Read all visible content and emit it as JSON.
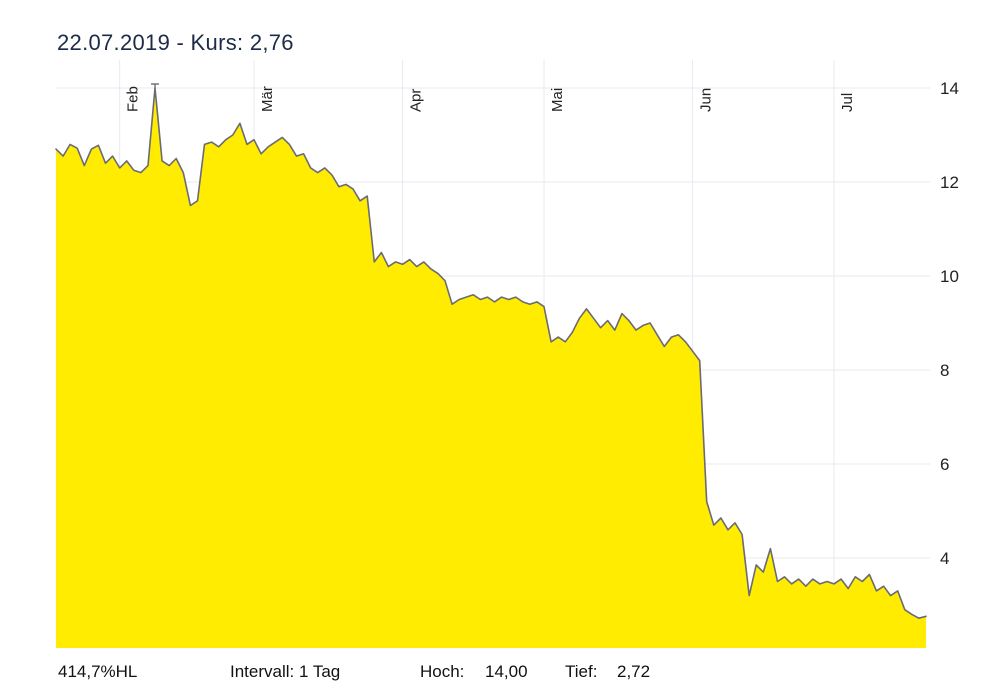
{
  "title": {
    "text": "22.07.2019  - Kurs: 2,76"
  },
  "footer": {
    "change": "414,7%HL",
    "interval": "Intervall: 1 Tag",
    "high_label": "Hoch:",
    "high_value": "14,00",
    "low_label": "Tief:",
    "low_value": "2,72"
  },
  "chart_data": {
    "type": "area",
    "title": "22.07.2019 - Kurs: 2,76",
    "xlabel": "",
    "ylabel": "",
    "grid": true,
    "legend_position": "none",
    "ylim": [
      2.0,
      14.3
    ],
    "y_ticks": [
      4,
      6,
      8,
      10,
      12,
      14
    ],
    "x_ticks": [
      {
        "label": "Feb",
        "index": 9
      },
      {
        "label": "Mär",
        "index": 28
      },
      {
        "label": "Apr",
        "index": 49
      },
      {
        "label": "Mai",
        "index": 69
      },
      {
        "label": "Jun",
        "index": 90
      },
      {
        "label": "Jul",
        "index": 110
      }
    ],
    "high": 14.0,
    "low": 2.72,
    "last": 2.76,
    "last_date": "22.07.2019",
    "interval": "1 Tag",
    "values": [
      12.7,
      12.55,
      12.8,
      12.72,
      12.35,
      12.7,
      12.78,
      12.4,
      12.55,
      12.3,
      12.45,
      12.25,
      12.2,
      12.35,
      14.0,
      12.45,
      12.35,
      12.5,
      12.2,
      11.5,
      11.6,
      12.8,
      12.85,
      12.75,
      12.9,
      13.0,
      13.25,
      12.8,
      12.9,
      12.6,
      12.75,
      12.85,
      12.95,
      12.8,
      12.55,
      12.6,
      12.3,
      12.2,
      12.3,
      12.15,
      11.9,
      11.95,
      11.85,
      11.6,
      11.7,
      10.3,
      10.5,
      10.2,
      10.3,
      10.25,
      10.35,
      10.2,
      10.3,
      10.15,
      10.05,
      9.9,
      9.4,
      9.5,
      9.55,
      9.6,
      9.5,
      9.55,
      9.45,
      9.55,
      9.5,
      9.55,
      9.45,
      9.4,
      9.45,
      9.35,
      8.6,
      8.7,
      8.6,
      8.8,
      9.1,
      9.3,
      9.1,
      8.9,
      9.05,
      8.85,
      9.2,
      9.05,
      8.85,
      8.95,
      9.0,
      8.75,
      8.5,
      8.7,
      8.75,
      8.6,
      8.4,
      8.2,
      5.2,
      4.7,
      4.85,
      4.6,
      4.75,
      4.5,
      3.2,
      3.85,
      3.7,
      4.2,
      3.5,
      3.6,
      3.45,
      3.55,
      3.4,
      3.55,
      3.45,
      3.5,
      3.45,
      3.55,
      3.35,
      3.6,
      3.5,
      3.65,
      3.3,
      3.4,
      3.2,
      3.3,
      2.9,
      2.8,
      2.72,
      2.76
    ],
    "colors": {
      "area_fill": "#FFEC00",
      "line": "#6b6b73",
      "grid": "#e9e9f1",
      "tick_text": "#222222",
      "title_text": "#1c2b47"
    }
  }
}
